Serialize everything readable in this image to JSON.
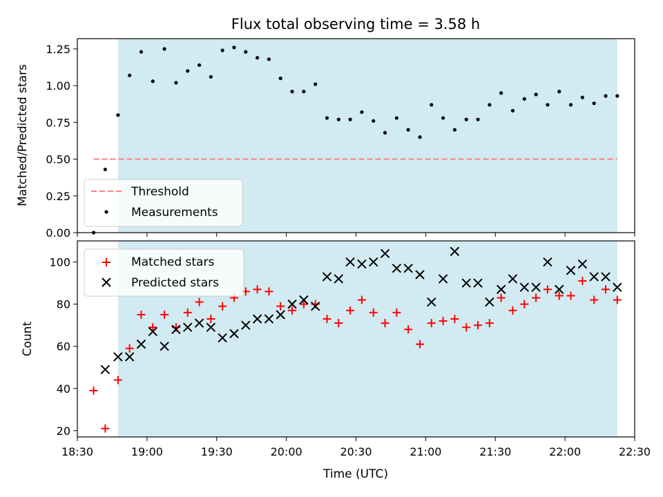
{
  "chart_data": [
    {
      "type": "scatter",
      "title": "Flux total observing time = 3.58 h",
      "xlabel": "",
      "ylabel": "Matched/Predicted stars",
      "ylim": [
        0.0,
        1.32
      ],
      "yticks": [
        "0.00",
        "0.25",
        "0.50",
        "0.75",
        "1.00",
        "1.25"
      ],
      "x_range_minutes_after_18_00": [
        30,
        270
      ],
      "shaded_region_minutes": [
        47.5,
        262.5
      ],
      "shaded_color": "#add8e6",
      "legend_position": "lower-left",
      "threshold": {
        "name": "Threshold",
        "value": 0.5,
        "x_start_minutes": 37,
        "x_end_minutes": 262.5,
        "color": "#ff7f7f"
      },
      "series": [
        {
          "name": "Measurements",
          "color": "#000000",
          "x_minutes": [
            37,
            42,
            47.5,
            52.5,
            57.5,
            62.5,
            67.5,
            72.5,
            77.5,
            82.5,
            87.5,
            92.5,
            97.5,
            102.5,
            107.5,
            112.5,
            117.5,
            122.5,
            127.5,
            132.5,
            137.5,
            142.5,
            147.5,
            152.5,
            157.5,
            162.5,
            167.5,
            172.5,
            177.5,
            182.5,
            187.5,
            192.5,
            197.5,
            202.5,
            207.5,
            212.5,
            217.5,
            222.5,
            227.5,
            232.5,
            237.5,
            242.5,
            247.5,
            252.5,
            257.5,
            262.5
          ],
          "values": [
            0.0,
            0.43,
            0.8,
            1.07,
            1.23,
            1.03,
            1.25,
            1.02,
            1.1,
            1.14,
            1.06,
            1.24,
            1.26,
            1.23,
            1.19,
            1.18,
            1.05,
            0.96,
            0.96,
            1.01,
            0.78,
            0.77,
            0.77,
            0.82,
            0.76,
            0.68,
            0.78,
            0.7,
            0.65,
            0.87,
            0.78,
            0.7,
            0.77,
            0.77,
            0.87,
            0.95,
            0.83,
            0.91,
            0.94,
            0.87,
            0.96,
            0.87,
            0.92,
            0.88,
            0.93,
            0.93
          ]
        }
      ]
    },
    {
      "type": "scatter",
      "title": "",
      "xlabel": "Time (UTC)",
      "ylabel": "Count",
      "ylim": [
        17,
        110
      ],
      "yticks": [
        "20",
        "40",
        "60",
        "80",
        "100"
      ],
      "x_range_minutes_after_18_00": [
        30,
        270
      ],
      "xticks": [
        "18:30",
        "19:00",
        "19:30",
        "20:00",
        "20:30",
        "21:00",
        "21:30",
        "22:00",
        "22:30"
      ],
      "shaded_region_minutes": [
        47.5,
        262.5
      ],
      "shaded_color": "#add8e6",
      "legend_position": "top-left",
      "series": [
        {
          "name": "Matched stars",
          "marker": "plus",
          "color": "#ff0000",
          "x_minutes": [
            37,
            42,
            47.5,
            52.5,
            57.5,
            62.5,
            67.5,
            72.5,
            77.5,
            82.5,
            87.5,
            92.5,
            97.5,
            102.5,
            107.5,
            112.5,
            117.5,
            122.5,
            127.5,
            132.5,
            137.5,
            142.5,
            147.5,
            152.5,
            157.5,
            162.5,
            167.5,
            172.5,
            177.5,
            182.5,
            187.5,
            192.5,
            197.5,
            202.5,
            207.5,
            212.5,
            217.5,
            222.5,
            227.5,
            232.5,
            237.5,
            242.5,
            247.5,
            252.5,
            257.5,
            262.5
          ],
          "values": [
            39,
            21,
            44,
            59,
            75,
            69,
            75,
            69,
            76,
            81,
            73,
            79,
            83,
            86,
            87,
            86,
            79,
            77,
            80,
            80,
            73,
            71,
            77,
            82,
            76,
            71,
            76,
            68,
            61,
            71,
            72,
            73,
            69,
            70,
            71,
            83,
            77,
            80,
            83,
            87,
            84,
            84,
            91,
            82,
            87,
            82
          ]
        },
        {
          "name": "Predicted stars",
          "marker": "x",
          "color": "#000000",
          "x_minutes": [
            42,
            47.5,
            52.5,
            57.5,
            62.5,
            67.5,
            72.5,
            77.5,
            82.5,
            87.5,
            92.5,
            97.5,
            102.5,
            107.5,
            112.5,
            117.5,
            122.5,
            127.5,
            132.5,
            137.5,
            142.5,
            147.5,
            152.5,
            157.5,
            162.5,
            167.5,
            172.5,
            177.5,
            182.5,
            187.5,
            192.5,
            197.5,
            202.5,
            207.5,
            212.5,
            217.5,
            222.5,
            227.5,
            232.5,
            237.5,
            242.5,
            247.5,
            252.5,
            257.5,
            262.5
          ],
          "values": [
            49,
            55,
            55,
            61,
            67,
            60,
            68,
            69,
            71,
            69,
            64,
            66,
            70,
            73,
            73,
            75,
            80,
            82,
            79,
            93,
            92,
            100,
            99,
            100,
            104,
            97,
            97,
            94,
            81,
            92,
            105,
            90,
            90,
            81,
            87,
            92,
            88,
            88,
            100,
            87,
            96,
            99,
            93,
            93,
            88
          ]
        }
      ]
    }
  ]
}
